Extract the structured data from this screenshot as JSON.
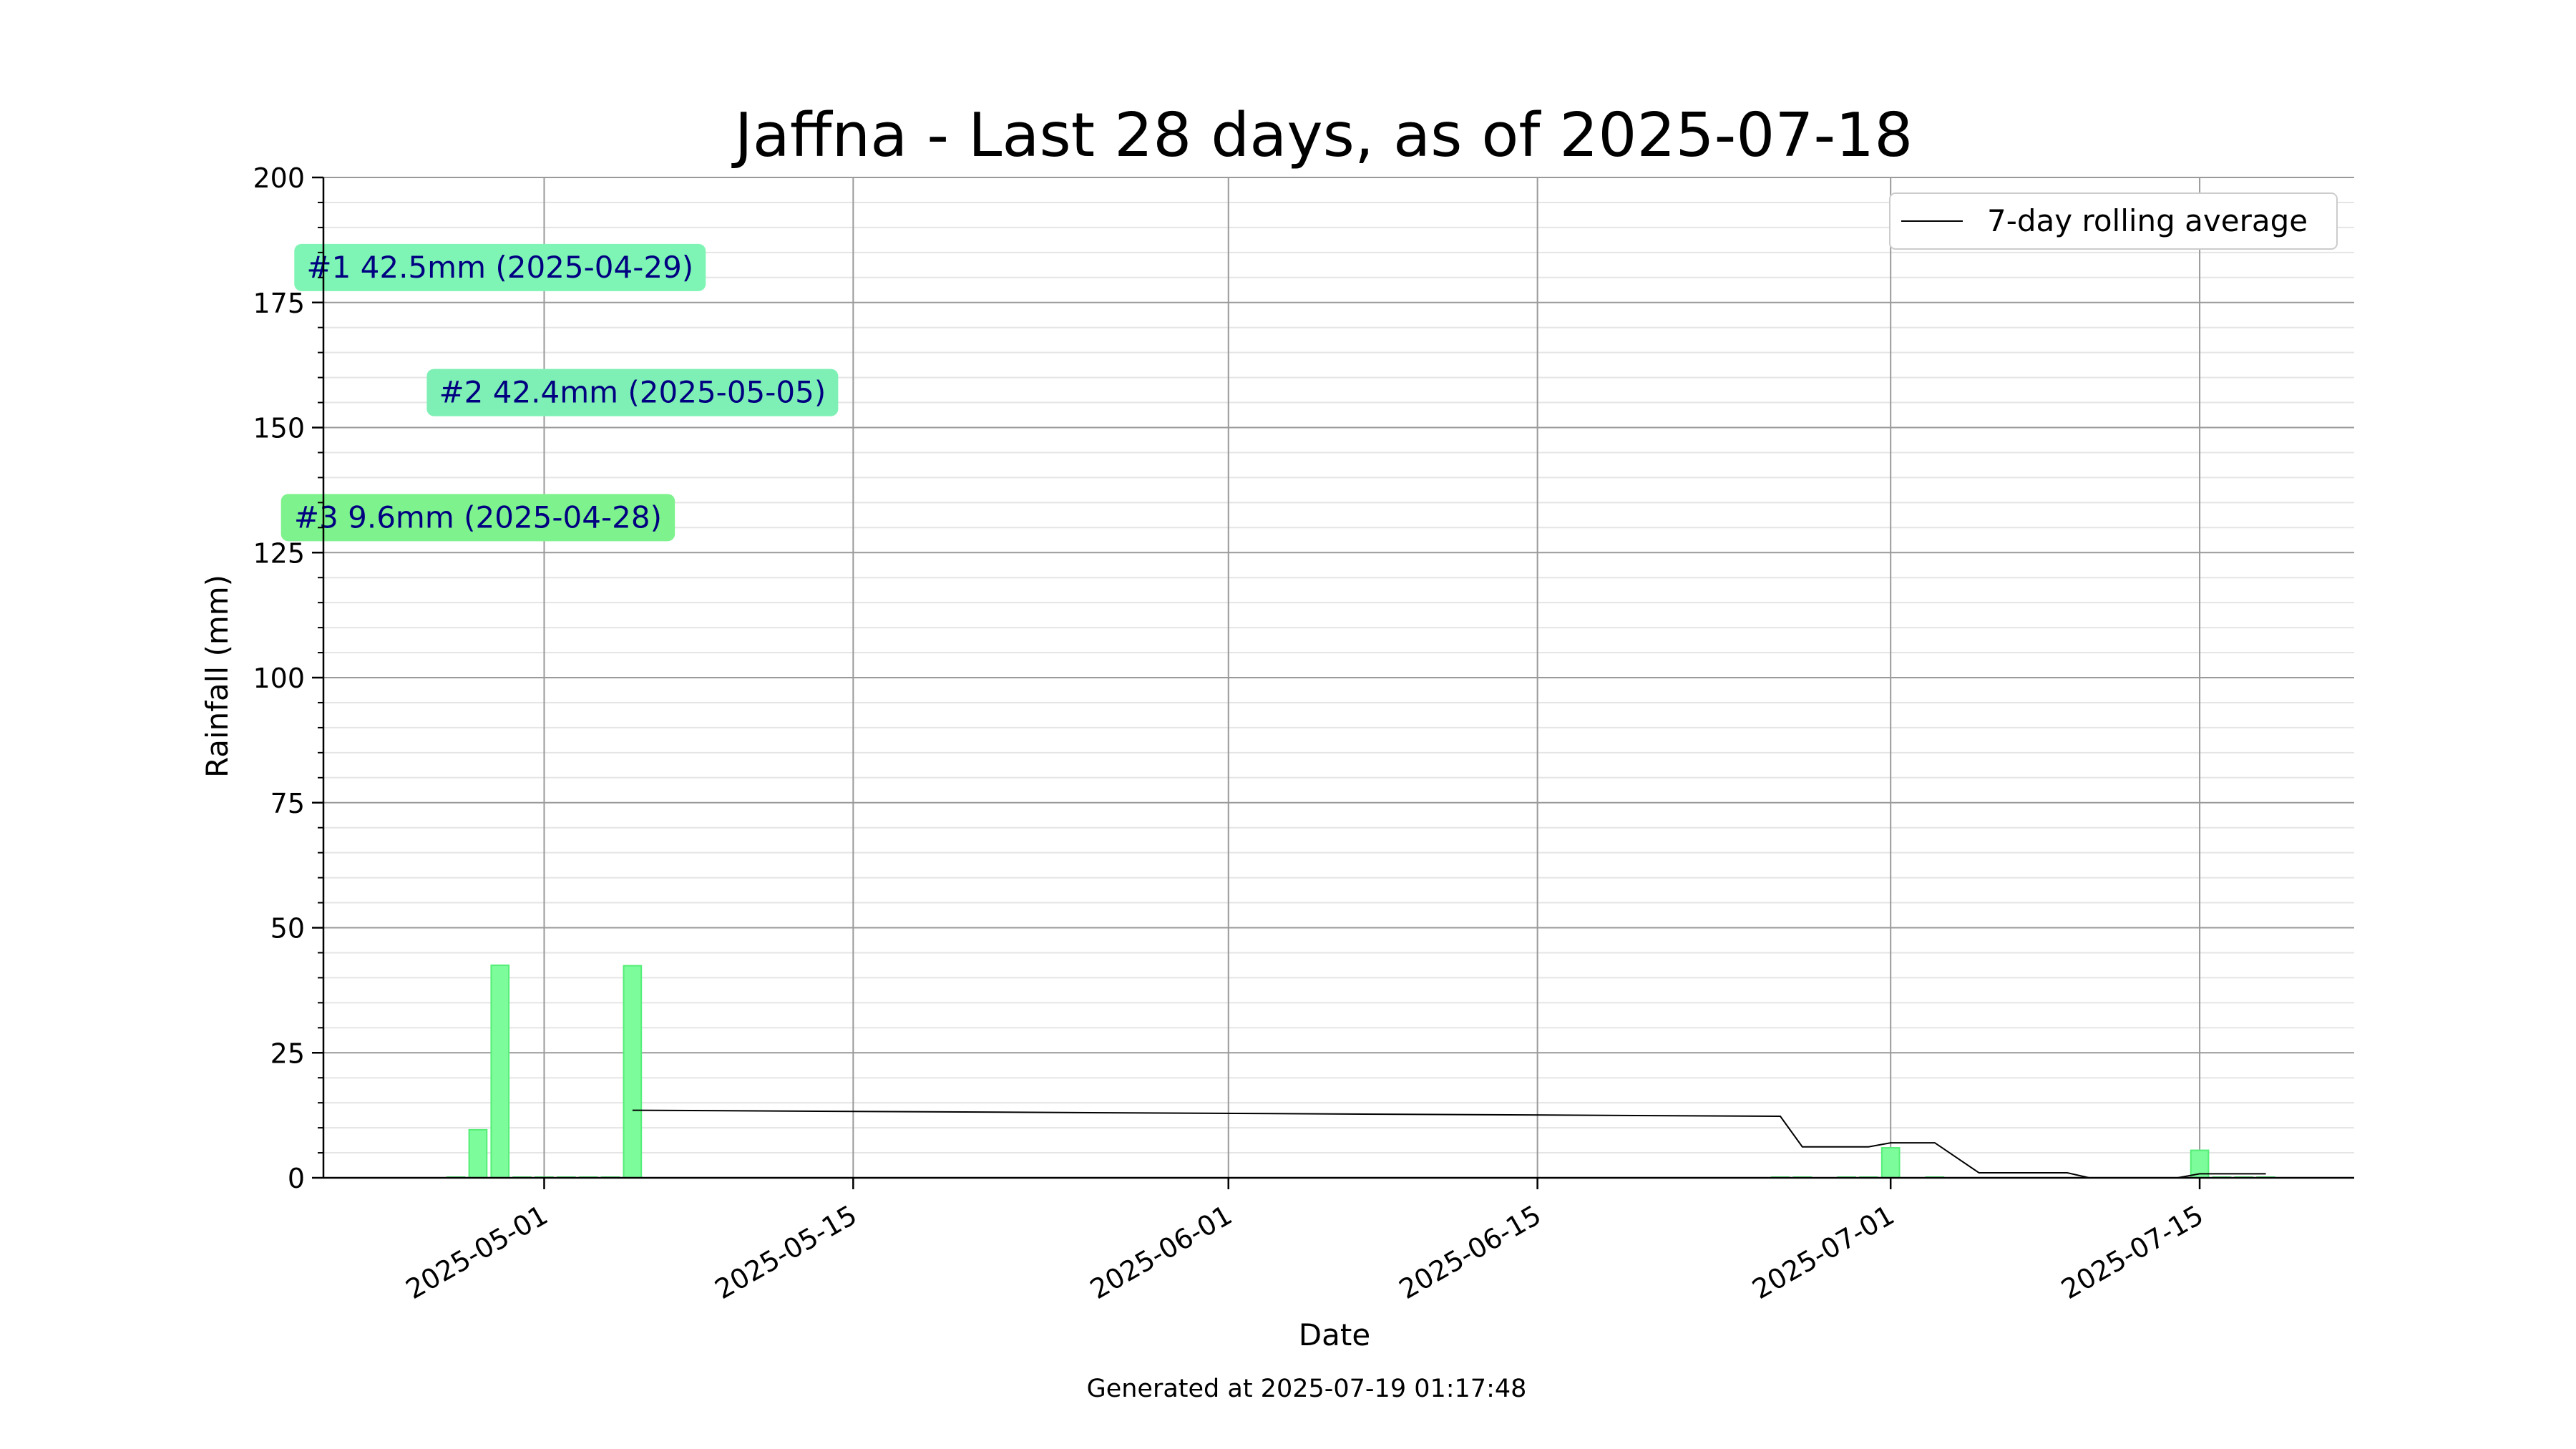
{
  "chart_data": {
    "type": "bar",
    "title": "Jaffna - Last 28 days, as of 2025-07-18",
    "xlabel": "Date",
    "ylabel": "Rainfall (mm)",
    "footer": "Generated at 2025-07-19 01:17:48",
    "xlim": [
      "2025-04-21",
      "2025-07-22"
    ],
    "ylim": [
      0,
      200
    ],
    "yticks": [
      0,
      25,
      50,
      75,
      100,
      125,
      150,
      175,
      200
    ],
    "xticks": [
      "2025-05-01",
      "2025-05-15",
      "2025-06-01",
      "2025-06-15",
      "2025-07-01",
      "2025-07-15"
    ],
    "grid": true,
    "minor_grid": true,
    "legend_position": "upper right",
    "bars": {
      "color": "#7cfc9b",
      "edge_color": "#55ee77",
      "points": [
        {
          "x": "2025-04-27",
          "y": 0
        },
        {
          "x": "2025-04-28",
          "y": 9.6
        },
        {
          "x": "2025-04-29",
          "y": 42.5
        },
        {
          "x": "2025-04-30",
          "y": 0
        },
        {
          "x": "2025-05-01",
          "y": 0
        },
        {
          "x": "2025-05-02",
          "y": 0
        },
        {
          "x": "2025-05-03",
          "y": 0
        },
        {
          "x": "2025-05-04",
          "y": 0
        },
        {
          "x": "2025-05-05",
          "y": 42.4
        },
        {
          "x": "2025-06-26",
          "y": 0
        },
        {
          "x": "2025-06-27",
          "y": 0
        },
        {
          "x": "2025-06-29",
          "y": 0
        },
        {
          "x": "2025-06-30",
          "y": 0
        },
        {
          "x": "2025-07-01",
          "y": 6.0
        },
        {
          "x": "2025-07-03",
          "y": 0
        },
        {
          "x": "2025-07-15",
          "y": 5.5
        },
        {
          "x": "2025-07-16",
          "y": 0
        },
        {
          "x": "2025-07-17",
          "y": 0
        },
        {
          "x": "2025-07-18",
          "y": 0
        }
      ]
    },
    "series": [
      {
        "name": "7-day rolling average",
        "type": "line",
        "color": "#000000",
        "points": [
          {
            "x": "2025-05-05",
            "y": 13.5
          },
          {
            "x": "2025-06-26",
            "y": 12.3
          },
          {
            "x": "2025-06-27",
            "y": 6.2
          },
          {
            "x": "2025-06-30",
            "y": 6.2
          },
          {
            "x": "2025-07-01",
            "y": 7.0
          },
          {
            "x": "2025-07-03",
            "y": 7.0
          },
          {
            "x": "2025-07-05",
            "y": 1.0
          },
          {
            "x": "2025-07-09",
            "y": 1.0
          },
          {
            "x": "2025-07-10",
            "y": 0
          },
          {
            "x": "2025-07-14",
            "y": 0
          },
          {
            "x": "2025-07-15",
            "y": 0.8
          },
          {
            "x": "2025-07-18",
            "y": 0.8
          }
        ]
      }
    ],
    "annotations": [
      {
        "text": "#1 42.5mm (2025-04-29)",
        "x": "2025-04-29",
        "y": 182,
        "color": "#7ff5b5"
      },
      {
        "text": "#2 42.4mm (2025-05-05)",
        "x": "2025-05-05",
        "y": 157,
        "color": "#7ff0b5"
      },
      {
        "text": "#3 9.6mm (2025-04-28)",
        "x": "2025-04-28",
        "y": 132,
        "color": "#7ef28c"
      }
    ]
  }
}
